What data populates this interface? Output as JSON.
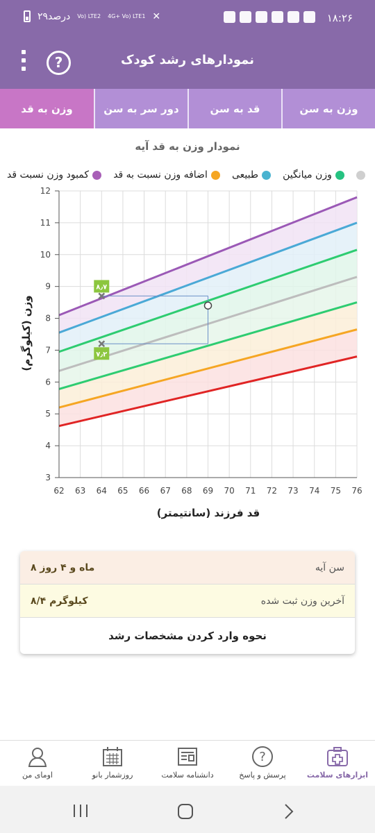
{
  "status": {
    "time": "۱۸:۲۶",
    "battery": "۲۹درصد",
    "net1": "Vo) LTE2",
    "net2": "4G+ Vo) LTE1"
  },
  "appbar": {
    "title": "نمودارهای رشد کودک",
    "help": "?"
  },
  "tabs": [
    {
      "label": "وزن به سن"
    },
    {
      "label": "قد به سن"
    },
    {
      "label": "دور سر به سن"
    },
    {
      "label": "وزن به قد"
    }
  ],
  "chart_title": "نمودار وزن به قد آیه",
  "legend": [
    {
      "label": "کمبود وزن نسبت قد",
      "color": "#a85fb7"
    },
    {
      "label": "اضافه وزن نسبت به قد",
      "color": "#f5a623"
    },
    {
      "label": "طبیعی",
      "color": "#4ab3d0"
    },
    {
      "label": "وزن میانگین",
      "color": "#26c281"
    },
    {
      "label": "",
      "color": "#cfcfcf"
    }
  ],
  "chart_data": {
    "type": "area",
    "title": "نمودار وزن به قد آیه",
    "xlabel": "قد فرزند (سانتیمتر)",
    "ylabel": "وزن (کیلوگرم)",
    "xlim": [
      62,
      76
    ],
    "ylim": [
      3,
      12
    ],
    "x_ticks": [
      62,
      63,
      64,
      65,
      66,
      67,
      68,
      69,
      70,
      71,
      72,
      73,
      74,
      75,
      76
    ],
    "y_ticks": [
      3,
      4,
      5,
      6,
      7,
      8,
      9,
      10,
      11,
      12
    ],
    "grid": true,
    "curves": [
      {
        "color": "#9b59b6",
        "points": [
          [
            62,
            8.1
          ],
          [
            76,
            11.8
          ]
        ]
      },
      {
        "color": "#4aa9d6",
        "points": [
          [
            62,
            7.55
          ],
          [
            76,
            11.0
          ]
        ]
      },
      {
        "color": "#2ecc71",
        "points": [
          [
            62,
            6.95
          ],
          [
            76,
            10.15
          ]
        ]
      },
      {
        "color": "#bdbdbd",
        "points": [
          [
            62,
            6.35
          ],
          [
            76,
            9.3
          ]
        ]
      },
      {
        "color": "#2ecc71",
        "points": [
          [
            62,
            5.78
          ],
          [
            76,
            8.5
          ]
        ]
      },
      {
        "color": "#f5a623",
        "points": [
          [
            62,
            5.2
          ],
          [
            76,
            7.65
          ]
        ]
      },
      {
        "color": "#e02424",
        "points": [
          [
            62,
            4.62
          ],
          [
            76,
            6.8
          ]
        ]
      }
    ],
    "band_fills": [
      "#f1e3f5",
      "#e2f0f8",
      "#e1f6ea",
      "#e6f6ea",
      "#fbeed8",
      "#fbe0e0"
    ],
    "markers": [
      {
        "x": 64,
        "y": 8.7,
        "label": "۸٫۷"
      },
      {
        "x": 64,
        "y": 7.2,
        "label": "۷٫۲"
      }
    ],
    "point": {
      "x": 69,
      "y": 8.4
    }
  },
  "card": {
    "age_label": "سن آیه",
    "age_value": "۸ ماه و ۴ روز",
    "weight_label": "آخرین وزن ثبت شده",
    "weight_value": "۸/۴ کیلوگرم",
    "howto": "نحوه وارد کردن مشخصات رشد"
  },
  "bottomnav": [
    {
      "label": "ابزارهای سلامت",
      "icon": "health-kit-icon",
      "active": true
    },
    {
      "label": "پرسش و پاسخ",
      "icon": "question-icon",
      "active": false
    },
    {
      "label": "دانشنامه سلامت",
      "icon": "newspaper-icon",
      "active": false
    },
    {
      "label": "روزشمار بانو",
      "icon": "calendar-icon",
      "active": false
    },
    {
      "label": "اومای من",
      "icon": "profile-icon",
      "active": false
    }
  ]
}
